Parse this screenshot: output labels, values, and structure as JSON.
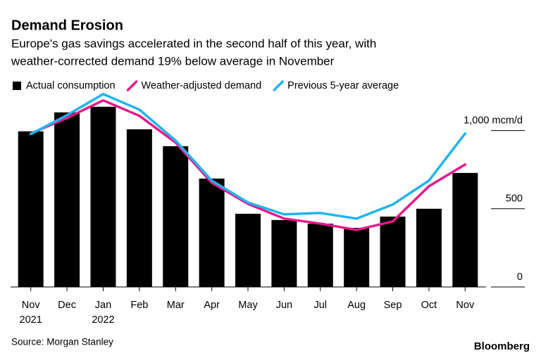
{
  "chart_data": {
    "type": "combo",
    "title": "Demand Erosion",
    "subtitle": [
      "Europe's gas savings accelerated in the second half of this year, with",
      "weather-corrected demand 19% below average in November"
    ],
    "source": "Source: Morgan Stanley",
    "brand": "Bloomberg",
    "categories": [
      [
        "Nov",
        "2021"
      ],
      [
        "Dec"
      ],
      [
        "Jan",
        "2022"
      ],
      [
        "Feb"
      ],
      [
        "Mar"
      ],
      [
        "Apr"
      ],
      [
        "May"
      ],
      [
        "Jun"
      ],
      [
        "Jul"
      ],
      [
        "Aug"
      ],
      [
        "Sep"
      ],
      [
        "Oct"
      ],
      [
        "Nov"
      ]
    ],
    "series": [
      {
        "name": "Actual consumption",
        "type": "bar",
        "color": "#000000",
        "values": [
          995,
          1116,
          1152,
          1008,
          900,
          693,
          468,
          428,
          405,
          378,
          450,
          500,
          729
        ]
      },
      {
        "name": "Weather-adjusted demand",
        "type": "line",
        "color": "#e8198b",
        "values": [
          981,
          1080,
          1193,
          1094,
          923,
          666,
          531,
          437,
          405,
          365,
          419,
          644,
          783
        ]
      },
      {
        "name": "Previous 5-year average",
        "type": "line",
        "color": "#1fb4ef",
        "values": [
          977,
          1098,
          1233,
          1134,
          936,
          680,
          540,
          464,
          473,
          437,
          527,
          680,
          981
        ]
      }
    ],
    "ylim": [
      0,
      1250
    ],
    "yticks": [
      0,
      500,
      {
        "value": 1000,
        "label": "1,000 mcm/d"
      }
    ]
  }
}
